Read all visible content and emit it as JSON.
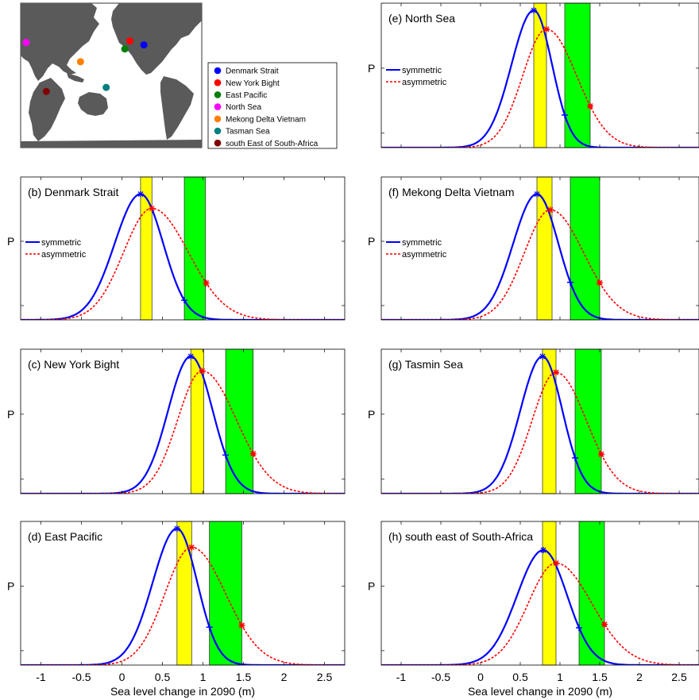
{
  "map": {
    "legend": [
      {
        "label": "Denmark Strait",
        "color": "#0000ff",
        "lon": 155,
        "lat": 38
      },
      {
        "label": "New York Bight",
        "color": "#ff0000",
        "lon": 127,
        "lat": 43
      },
      {
        "label": "East Pacific",
        "color": "#007f00",
        "lon": 117,
        "lat": 33
      },
      {
        "label": "North Sea",
        "color": "#ff00ff",
        "lon": -79,
        "lat": 41
      },
      {
        "label": "Mekong Delta Vietnam",
        "color": "#ff8000",
        "lon": 29,
        "lat": 17
      },
      {
        "label": "Tasman Sea",
        "color": "#008080",
        "lon": 80,
        "lat": -15
      },
      {
        "label": "south East of South-Africa",
        "color": "#800000",
        "lon": -39,
        "lat": -20
      }
    ]
  },
  "shared": {
    "ylabel": "P",
    "xlabel": "Sea level change in 2090 (m)",
    "xticks": [
      "-1",
      "-0.5",
      "0",
      "0.5",
      "1",
      "1.5",
      "2",
      "2.5"
    ],
    "legend_symmetric": "symmetric",
    "legend_asymmetric": "asymmetric"
  },
  "chart_data": [
    {
      "type": "line",
      "title": "(b) Denmark Strait",
      "xlim": [
        -1.25,
        2.75
      ],
      "ylim": [
        0,
        1
      ],
      "yellow_band": [
        0.23,
        0.37
      ],
      "green_band": [
        0.77,
        1.03
      ],
      "series": [
        {
          "name": "symmetric",
          "mode": 0.23,
          "peak": 0.88,
          "sigL": 0.32,
          "sigR": 0.28,
          "marker_x": 0.77
        },
        {
          "name": "asymmetric",
          "mode": 0.37,
          "peak": 0.78,
          "sigL": 0.35,
          "sigR": 0.45,
          "marker_x": 1.04
        }
      ]
    },
    {
      "type": "line",
      "title": "(c) New York Bight",
      "xlim": [
        -1.25,
        2.75
      ],
      "ylim": [
        0,
        1
      ],
      "yellow_band": [
        0.85,
        1.01
      ],
      "green_band": [
        1.28,
        1.62
      ],
      "series": [
        {
          "name": "symmetric",
          "mode": 0.85,
          "peak": 0.95,
          "sigL": 0.28,
          "sigR": 0.27,
          "marker_x": 1.28
        },
        {
          "name": "asymmetric",
          "mode": 0.99,
          "peak": 0.85,
          "sigL": 0.3,
          "sigR": 0.42,
          "marker_x": 1.62
        }
      ]
    },
    {
      "type": "line",
      "title": "(d) East Pacific",
      "xlim": [
        -1.25,
        2.75
      ],
      "ylim": [
        0,
        1
      ],
      "yellow_band": [
        0.68,
        0.86
      ],
      "green_band": [
        1.08,
        1.48
      ],
      "series": [
        {
          "name": "symmetric",
          "mode": 0.68,
          "peak": 0.95,
          "sigL": 0.3,
          "sigR": 0.25,
          "marker_x": 1.08
        },
        {
          "name": "asymmetric",
          "mode": 0.86,
          "peak": 0.82,
          "sigL": 0.33,
          "sigR": 0.42,
          "marker_x": 1.48
        }
      ]
    },
    {
      "type": "line",
      "title": "(e) North Sea",
      "xlim": [
        -1.25,
        2.75
      ],
      "ylim": [
        0,
        1
      ],
      "yellow_band": [
        0.67,
        0.83
      ],
      "green_band": [
        1.06,
        1.38
      ],
      "series": [
        {
          "name": "symmetric",
          "mode": 0.67,
          "peak": 0.95,
          "sigL": 0.28,
          "sigR": 0.23,
          "marker_x": 1.06
        },
        {
          "name": "asymmetric",
          "mode": 0.83,
          "peak": 0.82,
          "sigL": 0.3,
          "sigR": 0.38,
          "marker_x": 1.38
        }
      ]
    },
    {
      "type": "line",
      "title": "(f) Mekong Delta Vietnam",
      "xlim": [
        -1.25,
        2.75
      ],
      "ylim": [
        0,
        1
      ],
      "yellow_band": [
        0.71,
        0.9
      ],
      "green_band": [
        1.13,
        1.5
      ],
      "series": [
        {
          "name": "symmetric",
          "mode": 0.71,
          "peak": 0.88,
          "sigL": 0.3,
          "sigR": 0.27,
          "marker_x": 1.13
        },
        {
          "name": "asymmetric",
          "mode": 0.88,
          "peak": 0.77,
          "sigL": 0.33,
          "sigR": 0.42,
          "marker_x": 1.5
        }
      ]
    },
    {
      "type": "line",
      "title": "(g) Tasmin Sea",
      "xlim": [
        -1.25,
        2.75
      ],
      "ylim": [
        0,
        1
      ],
      "yellow_band": [
        0.78,
        0.95
      ],
      "green_band": [
        1.19,
        1.52
      ],
      "series": [
        {
          "name": "symmetric",
          "mode": 0.78,
          "peak": 0.95,
          "sigL": 0.28,
          "sigR": 0.25,
          "marker_x": 1.19
        },
        {
          "name": "asymmetric",
          "mode": 0.95,
          "peak": 0.84,
          "sigL": 0.3,
          "sigR": 0.38,
          "marker_x": 1.52
        }
      ]
    },
    {
      "type": "line",
      "title": "(h) south east of South-Africa",
      "xlim": [
        -1.25,
        2.75
      ],
      "ylim": [
        0,
        1
      ],
      "yellow_band": [
        0.78,
        0.95
      ],
      "green_band": [
        1.24,
        1.56
      ],
      "series": [
        {
          "name": "symmetric",
          "mode": 0.79,
          "peak": 0.8,
          "sigL": 0.33,
          "sigR": 0.3,
          "marker_x": 1.24
        },
        {
          "name": "asymmetric",
          "mode": 0.95,
          "peak": 0.71,
          "sigL": 0.35,
          "sigR": 0.45,
          "marker_x": 1.56
        }
      ]
    }
  ]
}
